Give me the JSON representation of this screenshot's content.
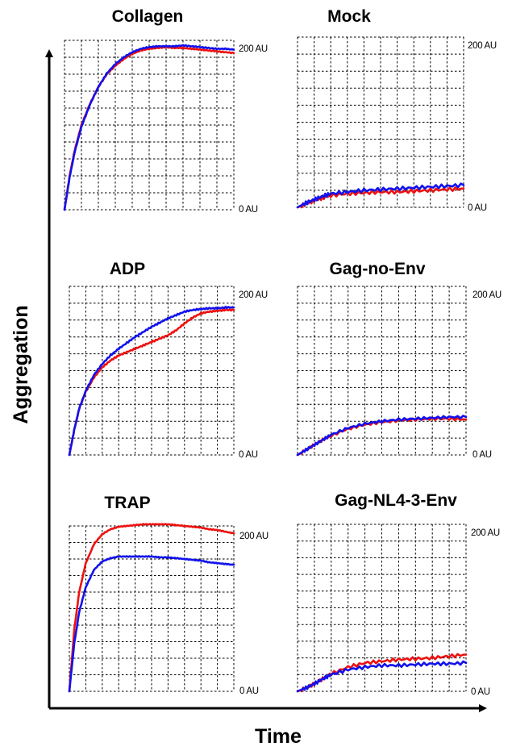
{
  "x_axis_label": "Time",
  "y_axis_label": "Aggregation",
  "colors": {
    "red_series": "#ee1111",
    "blue_series": "#1111ee",
    "axes": "#000000"
  },
  "chart_data": [
    {
      "type": "line",
      "title": "Collagen",
      "ymax_label": "200 AU",
      "ymin_label": "0 AU",
      "ylim": [
        0,
        200
      ],
      "xlim": [
        0,
        1
      ],
      "series": [
        {
          "color": "red",
          "x": [
            0,
            0.03,
            0.06,
            0.1,
            0.15,
            0.2,
            0.25,
            0.3,
            0.35,
            0.4,
            0.45,
            0.5,
            0.55,
            0.6,
            0.65,
            0.7,
            0.75,
            0.8,
            0.85,
            0.9,
            0.95,
            1.0
          ],
          "y": [
            0,
            40,
            70,
            100,
            125,
            145,
            160,
            170,
            178,
            184,
            188,
            190,
            191,
            192,
            191,
            191,
            190,
            189,
            188,
            187,
            186,
            185
          ]
        },
        {
          "color": "blue",
          "x": [
            0,
            0.03,
            0.06,
            0.1,
            0.15,
            0.2,
            0.25,
            0.3,
            0.35,
            0.4,
            0.45,
            0.5,
            0.55,
            0.6,
            0.65,
            0.7,
            0.75,
            0.8,
            0.85,
            0.9,
            0.95,
            1.0
          ],
          "y": [
            0,
            38,
            68,
            98,
            124,
            145,
            161,
            172,
            180,
            186,
            190,
            192,
            193,
            193,
            193,
            194,
            193,
            192,
            191,
            190,
            190,
            189
          ]
        }
      ]
    },
    {
      "type": "line",
      "title": "Mock",
      "ymax_label": "200 AU",
      "ymin_label": "0 AU",
      "ylim": [
        0,
        200
      ],
      "xlim": [
        0,
        1
      ],
      "series": [
        {
          "color": "red",
          "x": [
            0,
            0.05,
            0.1,
            0.15,
            0.2,
            0.3,
            0.4,
            0.5,
            0.6,
            0.7,
            0.8,
            0.9,
            1.0
          ],
          "y": [
            0,
            4,
            8,
            11,
            14,
            16,
            17,
            18,
            18,
            19,
            20,
            21,
            22
          ]
        },
        {
          "color": "blue",
          "x": [
            0,
            0.05,
            0.1,
            0.15,
            0.2,
            0.3,
            0.4,
            0.5,
            0.6,
            0.7,
            0.8,
            0.9,
            1.0
          ],
          "y": [
            0,
            5,
            9,
            13,
            16,
            18,
            20,
            21,
            22,
            23,
            24,
            25,
            26
          ]
        }
      ]
    },
    {
      "type": "line",
      "title": "ADP",
      "ymax_label": "200 AU",
      "ymin_label": "0 AU",
      "ylim": [
        0,
        200
      ],
      "xlim": [
        0,
        1
      ],
      "series": [
        {
          "color": "red",
          "x": [
            0,
            0.03,
            0.06,
            0.1,
            0.15,
            0.2,
            0.25,
            0.3,
            0.35,
            0.4,
            0.45,
            0.5,
            0.55,
            0.6,
            0.65,
            0.7,
            0.75,
            0.8,
            0.85,
            0.9,
            0.95,
            1.0
          ],
          "y": [
            0,
            30,
            55,
            75,
            92,
            104,
            112,
            118,
            122,
            126,
            130,
            134,
            138,
            142,
            148,
            156,
            163,
            168,
            170,
            171,
            172,
            172
          ]
        },
        {
          "color": "blue",
          "x": [
            0,
            0.03,
            0.06,
            0.1,
            0.15,
            0.2,
            0.25,
            0.3,
            0.35,
            0.4,
            0.45,
            0.5,
            0.55,
            0.6,
            0.65,
            0.7,
            0.75,
            0.8,
            0.85,
            0.9,
            0.95,
            1.0
          ],
          "y": [
            0,
            30,
            55,
            76,
            95,
            108,
            118,
            126,
            133,
            140,
            146,
            152,
            157,
            162,
            166,
            170,
            172,
            173,
            174,
            174,
            175,
            175
          ]
        }
      ]
    },
    {
      "type": "line",
      "title": "Gag-no-Env",
      "ymax_label": "200 AU",
      "ymin_label": "0 AU",
      "ylim": [
        0,
        200
      ],
      "xlim": [
        0,
        1
      ],
      "series": [
        {
          "color": "red",
          "x": [
            0,
            0.05,
            0.1,
            0.15,
            0.2,
            0.3,
            0.4,
            0.5,
            0.6,
            0.7,
            0.8,
            0.9,
            1.0
          ],
          "y": [
            0,
            6,
            12,
            18,
            23,
            31,
            36,
            39,
            41,
            42,
            43,
            43,
            42
          ]
        },
        {
          "color": "blue",
          "x": [
            0,
            0.05,
            0.1,
            0.15,
            0.2,
            0.3,
            0.4,
            0.5,
            0.6,
            0.7,
            0.8,
            0.9,
            1.0
          ],
          "y": [
            0,
            6,
            12,
            18,
            24,
            32,
            37,
            40,
            42,
            43,
            44,
            45,
            45
          ]
        }
      ]
    },
    {
      "type": "line",
      "title": "TRAP",
      "ymax_label": "200 AU",
      "ymin_label": "0 AU",
      "ylim": [
        0,
        200
      ],
      "xlim": [
        0,
        1
      ],
      "series": [
        {
          "color": "red",
          "x": [
            0,
            0.03,
            0.06,
            0.1,
            0.15,
            0.2,
            0.25,
            0.3,
            0.35,
            0.4,
            0.45,
            0.5,
            0.55,
            0.6,
            0.65,
            0.7,
            0.75,
            0.8,
            0.85,
            0.9,
            0.95,
            1.0
          ],
          "y": [
            0,
            75,
            120,
            155,
            178,
            190,
            196,
            199,
            200,
            201,
            202,
            202,
            202,
            202,
            201,
            200,
            199,
            198,
            196,
            195,
            193,
            191
          ]
        },
        {
          "color": "blue",
          "x": [
            0,
            0.03,
            0.06,
            0.1,
            0.15,
            0.2,
            0.25,
            0.3,
            0.35,
            0.4,
            0.45,
            0.5,
            0.55,
            0.6,
            0.65,
            0.7,
            0.75,
            0.8,
            0.85,
            0.9,
            0.95,
            1.0
          ],
          "y": [
            0,
            58,
            96,
            126,
            147,
            157,
            161,
            163,
            163,
            163,
            163,
            163,
            162,
            162,
            161,
            160,
            159,
            158,
            156,
            155,
            154,
            153
          ]
        }
      ]
    },
    {
      "type": "line",
      "title": "Gag-NL4-3-Env",
      "ymax_label": "200 AU",
      "ymin_label": "0 AU",
      "ylim": [
        0,
        200
      ],
      "xlim": [
        0,
        1
      ],
      "series": [
        {
          "color": "red",
          "x": [
            0,
            0.05,
            0.1,
            0.15,
            0.2,
            0.3,
            0.4,
            0.5,
            0.6,
            0.7,
            0.8,
            0.9,
            1.0
          ],
          "y": [
            0,
            4,
            9,
            15,
            21,
            29,
            34,
            36,
            38,
            39,
            40,
            42,
            44
          ]
        },
        {
          "color": "blue",
          "x": [
            0,
            0.05,
            0.1,
            0.15,
            0.2,
            0.3,
            0.4,
            0.5,
            0.6,
            0.7,
            0.8,
            0.9,
            1.0
          ],
          "y": [
            0,
            4,
            9,
            15,
            20,
            26,
            29,
            31,
            31,
            32,
            33,
            33,
            34
          ]
        }
      ]
    }
  ]
}
